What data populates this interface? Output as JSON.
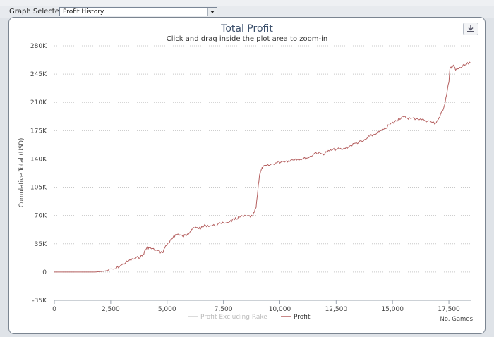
{
  "header": {
    "graph_selected_label": "Graph Selected:",
    "graph_selected_value": "Profit History"
  },
  "chart_data": {
    "type": "line",
    "title": "Total Profit",
    "subtitle": "Click and drag inside the plot area to zoom-in",
    "xlabel": "No. Games",
    "ylabel": "Cumulative Total (USD)",
    "xlim": [
      0,
      18500
    ],
    "ylim": [
      -35000,
      280000
    ],
    "x_ticks": [
      0,
      2500,
      5000,
      7500,
      10000,
      12500,
      15000,
      17500
    ],
    "x_tick_labels": [
      "0",
      "2,500",
      "5,000",
      "7,500",
      "10,000",
      "12,500",
      "15,000",
      "17,500"
    ],
    "y_ticks": [
      -35000,
      0,
      35000,
      70000,
      105000,
      140000,
      175000,
      210000,
      245000,
      280000
    ],
    "y_tick_labels": [
      "-35K",
      "0",
      "35K",
      "70K",
      "105K",
      "140K",
      "175K",
      "210K",
      "245K",
      "280K"
    ],
    "grid": "horizontal-dotted",
    "legend_position": "bottom-center",
    "series": [
      {
        "name": "Profit Excluding Rake",
        "color": "#cccccc",
        "visible": false,
        "x": [],
        "y": []
      },
      {
        "name": "Profit",
        "color": "#b56060",
        "visible": true,
        "x": [
          0,
          1000,
          1800,
          2200,
          2700,
          3000,
          3300,
          3600,
          3900,
          4100,
          4200,
          4500,
          4800,
          4950,
          5100,
          5300,
          5500,
          5700,
          5900,
          6100,
          6300,
          6500,
          6700,
          7000,
          7400,
          7800,
          8000,
          8200,
          8500,
          8800,
          8950,
          9100,
          9150,
          9250,
          9500,
          9800,
          10100,
          10400,
          10700,
          11000,
          11300,
          11600,
          11900,
          12200,
          12500,
          12800,
          13100,
          13400,
          13700,
          14000,
          14300,
          14600,
          14900,
          15100,
          15300,
          15500,
          15800,
          16100,
          16400,
          16700,
          16900,
          17100,
          17300,
          17500,
          17550,
          17700,
          17800,
          18000,
          18200,
          18450
        ],
        "y": [
          0,
          0,
          0,
          1000,
          4000,
          9000,
          14000,
          17000,
          20000,
          30000,
          30000,
          27000,
          24000,
          33000,
          36000,
          45000,
          47000,
          44000,
          47000,
          53000,
          55000,
          54000,
          58000,
          57000,
          60000,
          63000,
          65000,
          68000,
          69000,
          69000,
          80000,
          120000,
          125000,
          130000,
          132000,
          135000,
          137000,
          138000,
          140000,
          140000,
          142000,
          148000,
          146000,
          150000,
          152000,
          152000,
          156000,
          160000,
          162000,
          168000,
          172000,
          176000,
          183000,
          186000,
          190000,
          192000,
          190000,
          190000,
          188000,
          186000,
          184000,
          192000,
          206000,
          235000,
          252000,
          256000,
          250000,
          253000,
          256000,
          259000
        ]
      }
    ]
  }
}
